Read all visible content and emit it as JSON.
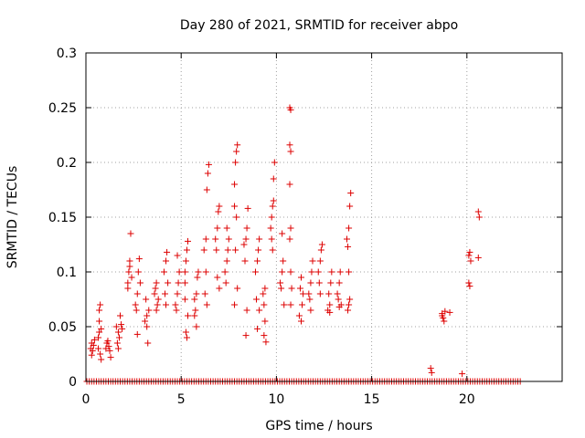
{
  "chart_data": {
    "type": "scatter",
    "title": "Day 280 of 2021, SRMTID for receiver abpo",
    "xlabel": "GPS time / hours",
    "ylabel": "SRMTID / TECUs",
    "xlim": [
      0,
      25
    ],
    "ylim": [
      0,
      0.3
    ],
    "xticks": [
      0,
      5,
      10,
      15,
      20
    ],
    "xtick_labels": [
      "0",
      "5",
      "10",
      "15",
      "20"
    ],
    "yticks": [
      0,
      0.05,
      0.1,
      0.15,
      0.2,
      0.25,
      0.3
    ],
    "ytick_labels": [
      "0",
      "0.05",
      "0.1",
      "0.15",
      "0.2",
      "0.25",
      "0.3"
    ],
    "grid": true,
    "marker": "plus",
    "color": "#dd0000",
    "series": [
      {
        "name": "SRMTID",
        "points": [
          [
            0.25,
            0.03
          ],
          [
            0.3,
            0.035
          ],
          [
            0.35,
            0.028
          ],
          [
            0.4,
            0.033
          ],
          [
            0.3,
            0.024
          ],
          [
            0.45,
            0.038
          ],
          [
            0.65,
            0.04
          ],
          [
            0.7,
            0.055
          ],
          [
            0.75,
            0.07
          ],
          [
            0.7,
            0.045
          ],
          [
            0.8,
            0.048
          ],
          [
            0.65,
            0.03
          ],
          [
            0.75,
            0.025
          ],
          [
            0.8,
            0.02
          ],
          [
            0.7,
            0.065
          ],
          [
            1.1,
            0.035
          ],
          [
            1.2,
            0.032
          ],
          [
            1.25,
            0.028
          ],
          [
            1.3,
            0.022
          ],
          [
            1.15,
            0.037
          ],
          [
            1.05,
            0.03
          ],
          [
            1.6,
            0.05
          ],
          [
            1.7,
            0.045
          ],
          [
            1.8,
            0.06
          ],
          [
            1.75,
            0.04
          ],
          [
            1.65,
            0.035
          ],
          [
            1.85,
            0.052
          ],
          [
            1.7,
            0.03
          ],
          [
            1.9,
            0.048
          ],
          [
            2.2,
            0.09
          ],
          [
            2.25,
            0.1
          ],
          [
            2.3,
            0.11
          ],
          [
            2.35,
            0.135
          ],
          [
            2.4,
            0.095
          ],
          [
            2.2,
            0.085
          ],
          [
            2.3,
            0.105
          ],
          [
            2.6,
            0.07
          ],
          [
            2.7,
            0.08
          ],
          [
            2.75,
            0.1
          ],
          [
            2.8,
            0.112
          ],
          [
            2.65,
            0.065
          ],
          [
            2.7,
            0.043
          ],
          [
            2.85,
            0.09
          ],
          [
            3.1,
            0.055
          ],
          [
            3.2,
            0.05
          ],
          [
            3.25,
            0.035
          ],
          [
            3.3,
            0.065
          ],
          [
            3.15,
            0.075
          ],
          [
            3.2,
            0.06
          ],
          [
            3.6,
            0.08
          ],
          [
            3.7,
            0.09
          ],
          [
            3.75,
            0.07
          ],
          [
            3.8,
            0.075
          ],
          [
            3.65,
            0.085
          ],
          [
            3.7,
            0.065
          ],
          [
            4.1,
            0.1
          ],
          [
            4.2,
            0.11
          ],
          [
            4.25,
            0.118
          ],
          [
            4.3,
            0.09
          ],
          [
            4.15,
            0.08
          ],
          [
            4.2,
            0.07
          ],
          [
            4.7,
            0.07
          ],
          [
            4.8,
            0.08
          ],
          [
            4.85,
            0.09
          ],
          [
            4.9,
            0.1
          ],
          [
            4.75,
            0.065
          ],
          [
            4.8,
            0.115
          ],
          [
            5.2,
            0.1
          ],
          [
            5.25,
            0.11
          ],
          [
            5.3,
            0.12
          ],
          [
            5.35,
            0.128
          ],
          [
            5.2,
            0.09
          ],
          [
            5.3,
            0.04
          ],
          [
            5.25,
            0.045
          ],
          [
            5.35,
            0.06
          ],
          [
            5.2,
            0.075
          ],
          [
            5.7,
            0.075
          ],
          [
            5.8,
            0.08
          ],
          [
            5.85,
            0.095
          ],
          [
            5.9,
            0.1
          ],
          [
            5.75,
            0.065
          ],
          [
            5.8,
            0.05
          ],
          [
            5.7,
            0.06
          ],
          [
            6.2,
            0.12
          ],
          [
            6.3,
            0.13
          ],
          [
            6.35,
            0.175
          ],
          [
            6.4,
            0.19
          ],
          [
            6.45,
            0.198
          ],
          [
            6.3,
            0.1
          ],
          [
            6.25,
            0.08
          ],
          [
            6.35,
            0.07
          ],
          [
            6.8,
            0.13
          ],
          [
            6.9,
            0.14
          ],
          [
            6.95,
            0.155
          ],
          [
            7.0,
            0.16
          ],
          [
            6.85,
            0.12
          ],
          [
            6.9,
            0.095
          ],
          [
            7.0,
            0.085
          ],
          [
            7.3,
            0.1
          ],
          [
            7.4,
            0.11
          ],
          [
            7.45,
            0.12
          ],
          [
            7.5,
            0.13
          ],
          [
            7.35,
            0.09
          ],
          [
            7.4,
            0.14
          ],
          [
            7.8,
            0.18
          ],
          [
            7.85,
            0.2
          ],
          [
            7.9,
            0.21
          ],
          [
            7.95,
            0.216
          ],
          [
            7.8,
            0.16
          ],
          [
            7.9,
            0.15
          ],
          [
            7.85,
            0.12
          ],
          [
            7.95,
            0.085
          ],
          [
            7.8,
            0.07
          ],
          [
            8.3,
            0.125
          ],
          [
            8.4,
            0.13
          ],
          [
            8.45,
            0.14
          ],
          [
            8.5,
            0.158
          ],
          [
            8.35,
            0.11
          ],
          [
            8.4,
            0.042
          ],
          [
            8.45,
            0.065
          ],
          [
            8.9,
            0.1
          ],
          [
            9.0,
            0.11
          ],
          [
            9.05,
            0.12
          ],
          [
            9.1,
            0.13
          ],
          [
            8.95,
            0.075
          ],
          [
            9.0,
            0.048
          ],
          [
            9.1,
            0.065
          ],
          [
            9.3,
            0.08
          ],
          [
            9.35,
            0.07
          ],
          [
            9.4,
            0.085
          ],
          [
            9.45,
            0.036
          ],
          [
            9.35,
            0.042
          ],
          [
            9.4,
            0.055
          ],
          [
            9.7,
            0.14
          ],
          [
            9.75,
            0.15
          ],
          [
            9.8,
            0.16
          ],
          [
            9.85,
            0.185
          ],
          [
            9.9,
            0.2
          ],
          [
            9.75,
            0.13
          ],
          [
            9.8,
            0.12
          ],
          [
            9.85,
            0.165
          ],
          [
            10.2,
            0.09
          ],
          [
            10.3,
            0.1
          ],
          [
            10.35,
            0.11
          ],
          [
            10.4,
            0.07
          ],
          [
            10.25,
            0.085
          ],
          [
            10.3,
            0.135
          ],
          [
            10.7,
            0.25
          ],
          [
            10.75,
            0.248
          ],
          [
            10.7,
            0.216
          ],
          [
            10.75,
            0.21
          ],
          [
            10.7,
            0.18
          ],
          [
            10.75,
            0.14
          ],
          [
            10.7,
            0.13
          ],
          [
            10.75,
            0.1
          ],
          [
            10.8,
            0.085
          ],
          [
            10.75,
            0.07
          ],
          [
            11.2,
            0.06
          ],
          [
            11.3,
            0.055
          ],
          [
            11.35,
            0.07
          ],
          [
            11.4,
            0.08
          ],
          [
            11.25,
            0.085
          ],
          [
            11.3,
            0.095
          ],
          [
            11.7,
            0.08
          ],
          [
            11.8,
            0.09
          ],
          [
            11.85,
            0.1
          ],
          [
            11.9,
            0.11
          ],
          [
            11.75,
            0.075
          ],
          [
            11.8,
            0.065
          ],
          [
            12.2,
            0.1
          ],
          [
            12.3,
            0.11
          ],
          [
            12.35,
            0.12
          ],
          [
            12.4,
            0.125
          ],
          [
            12.25,
            0.09
          ],
          [
            12.3,
            0.08
          ],
          [
            12.7,
            0.065
          ],
          [
            12.8,
            0.07
          ],
          [
            12.85,
            0.09
          ],
          [
            12.9,
            0.1
          ],
          [
            12.75,
            0.08
          ],
          [
            12.8,
            0.063
          ],
          [
            13.2,
            0.08
          ],
          [
            13.3,
            0.09
          ],
          [
            13.35,
            0.1
          ],
          [
            13.4,
            0.07
          ],
          [
            13.25,
            0.075
          ],
          [
            13.3,
            0.068
          ],
          [
            13.7,
            0.13
          ],
          [
            13.8,
            0.14
          ],
          [
            13.85,
            0.16
          ],
          [
            13.9,
            0.172
          ],
          [
            13.75,
            0.123
          ],
          [
            13.8,
            0.1
          ],
          [
            13.85,
            0.075
          ],
          [
            13.8,
            0.07
          ],
          [
            13.75,
            0.065
          ],
          [
            18.1,
            0.012
          ],
          [
            18.15,
            0.008
          ],
          [
            18.7,
            0.062
          ],
          [
            18.75,
            0.058
          ],
          [
            18.8,
            0.055
          ],
          [
            18.85,
            0.064
          ],
          [
            18.7,
            0.06
          ],
          [
            19.1,
            0.063
          ],
          [
            19.75,
            0.007
          ],
          [
            20.1,
            0.115
          ],
          [
            20.15,
            0.118
          ],
          [
            20.2,
            0.11
          ],
          [
            20.1,
            0.09
          ],
          [
            20.15,
            0.087
          ],
          [
            20.6,
            0.155
          ],
          [
            20.65,
            0.15
          ],
          [
            20.6,
            0.113
          ]
        ],
        "zero_range": [
          0.05,
          22.9
        ],
        "zero_step": 0.125,
        "zero_value": 0
      }
    ]
  }
}
